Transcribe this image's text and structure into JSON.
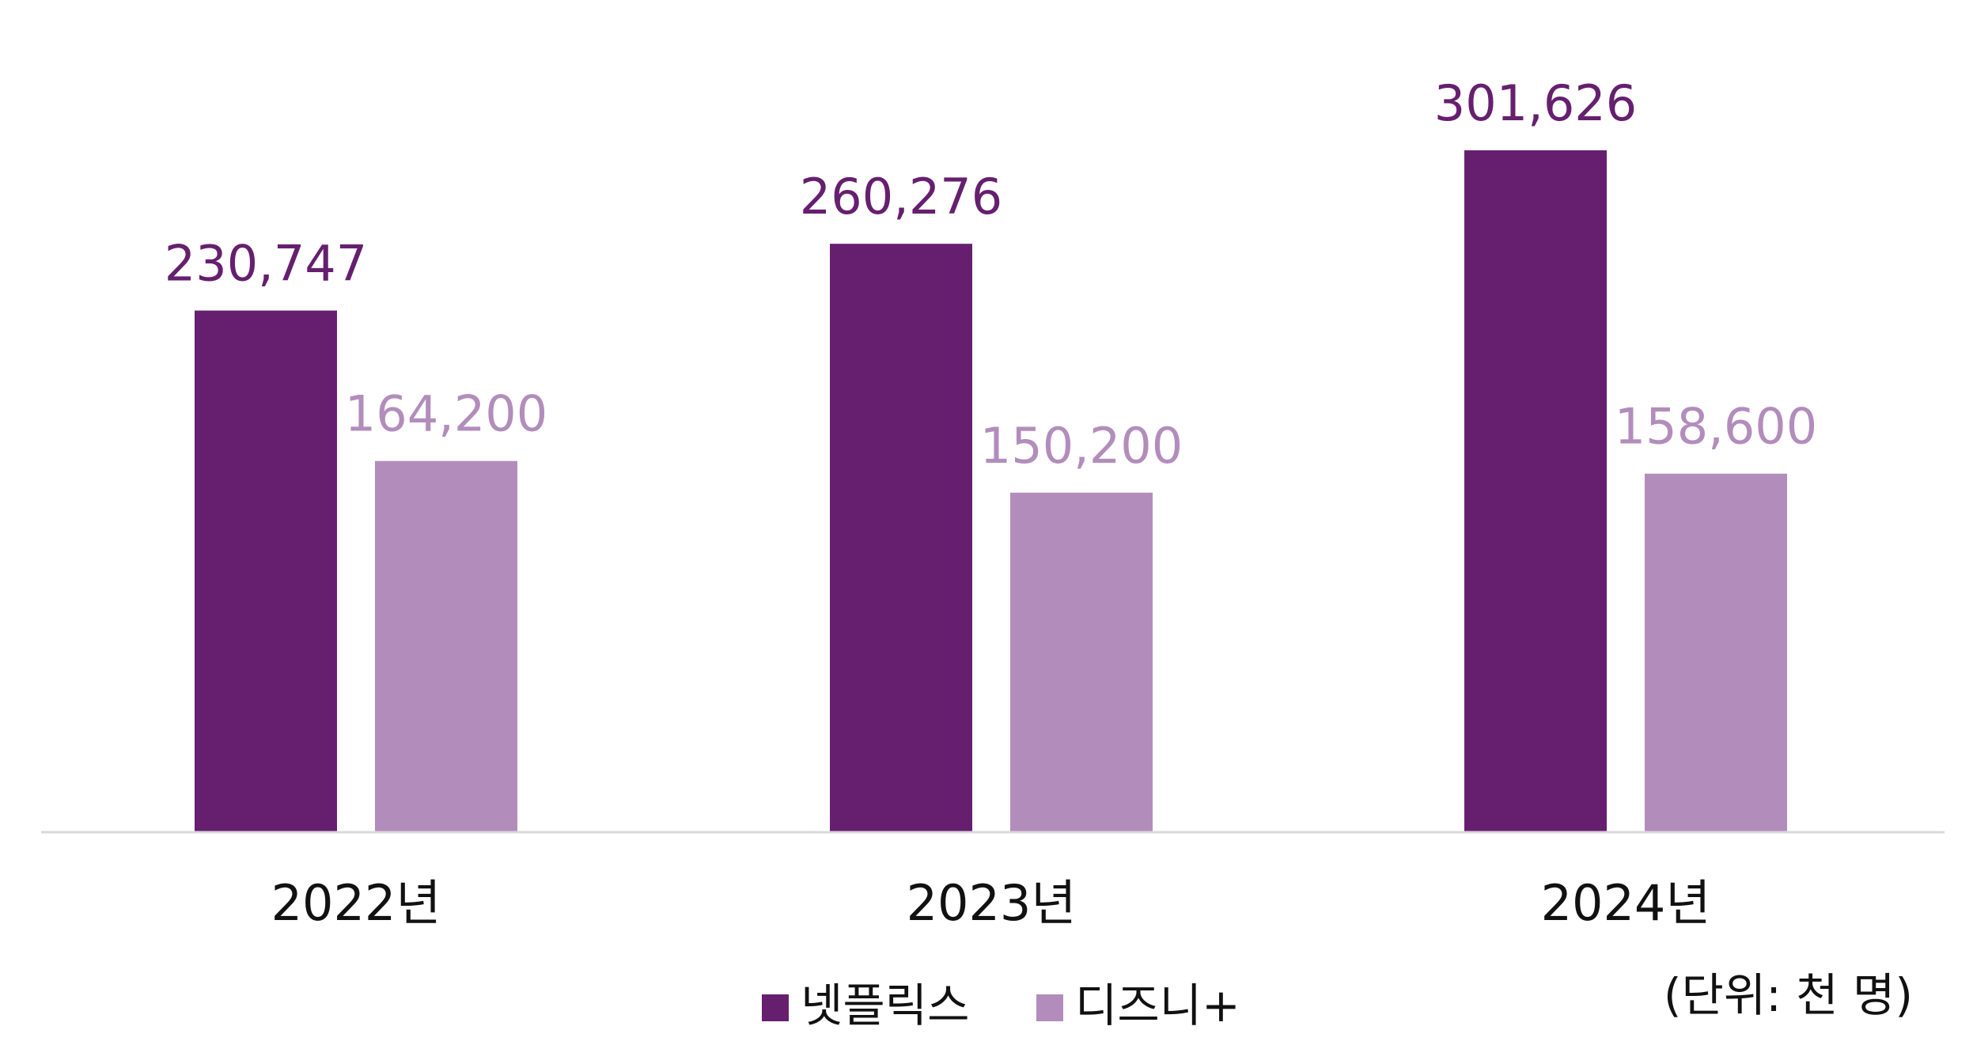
{
  "chart_data": {
    "type": "bar",
    "categories": [
      "2022년",
      "2023년",
      "2024년"
    ],
    "series": [
      {
        "name": "넷플릭스",
        "values": [
          230747,
          260276,
          301626
        ],
        "labels": [
          "230,747",
          "260,276",
          "301,626"
        ],
        "color": "#661F6F"
      },
      {
        "name": "디즈니+",
        "values": [
          164200,
          150200,
          158600
        ],
        "labels": [
          "164,200",
          "150,200",
          "158,600"
        ],
        "color": "#B28DBC"
      }
    ],
    "unit_note": "(단위: 천 명)",
    "ylim": [
      0,
      301626
    ],
    "grid": false,
    "legend_position": "bottom",
    "axis_line_color": "#D9D9D9",
    "category_label_color": "#111111"
  }
}
